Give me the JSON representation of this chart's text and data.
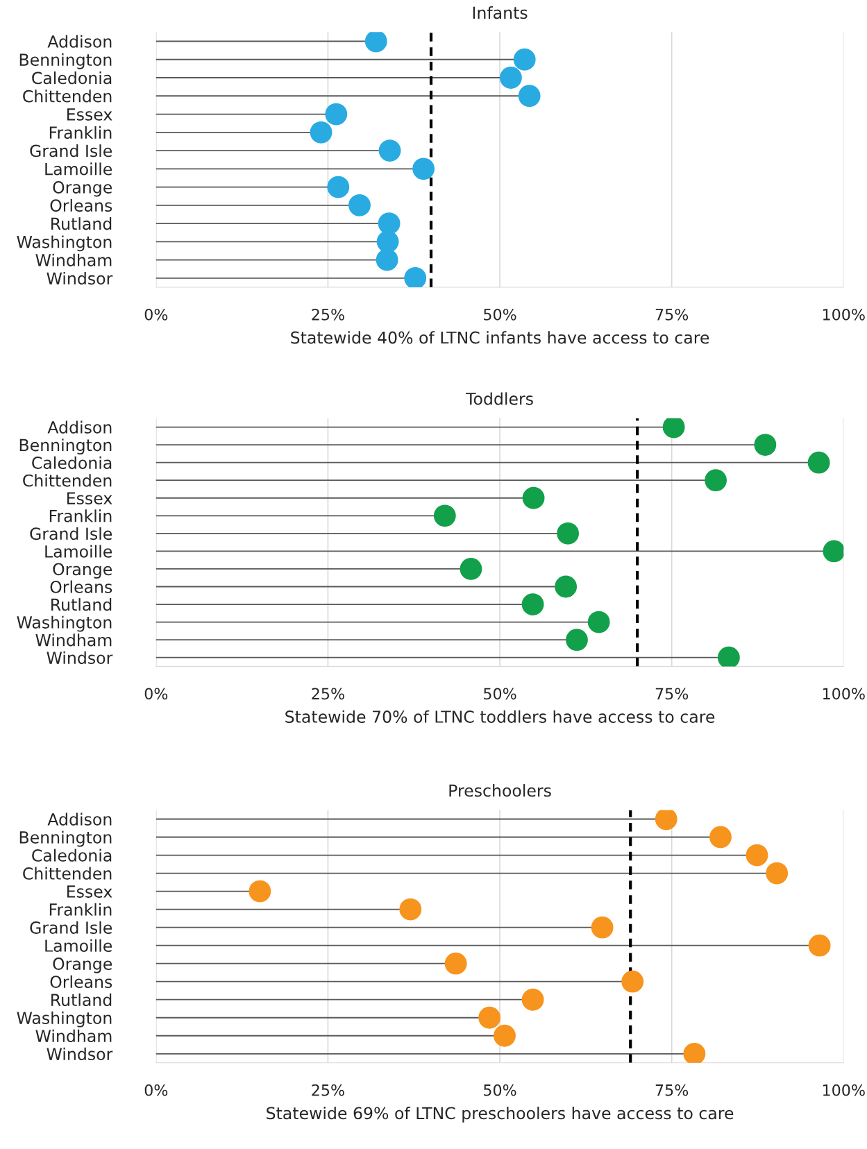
{
  "chart_data": [
    {
      "type": "lollipop",
      "title": "Infants",
      "xlabel": "Statewide 40% of LTNC infants have access to care",
      "orientation": "horizontal",
      "categories": [
        "Addison",
        "Bennington",
        "Caledonia",
        "Chittenden",
        "Essex",
        "Franklin",
        "Grand Isle",
        "Lamoille",
        "Orange",
        "Orleans",
        "Rutland",
        "Washington",
        "Windham",
        "Windsor"
      ],
      "series": [
        {
          "color": "#29abe2",
          "values": [
            32.0,
            53.6,
            51.6,
            54.3,
            26.2,
            24.0,
            34.0,
            38.9,
            26.5,
            29.6,
            33.9,
            33.7,
            33.6,
            37.7
          ]
        }
      ],
      "xlim": [
        0,
        100
      ],
      "xticks": [
        {
          "value": 0,
          "label": "0%"
        },
        {
          "value": 25,
          "label": "25%"
        },
        {
          "value": 50,
          "label": "50%"
        },
        {
          "value": 75,
          "label": "75%"
        },
        {
          "value": 100,
          "label": "100%"
        }
      ],
      "grid": "x",
      "legend": false,
      "marker": "circle",
      "ref_lines": [
        {
          "axis": "x",
          "value": 40,
          "color": "#000000",
          "line_style": "dashed"
        }
      ]
    },
    {
      "type": "lollipop",
      "title": "Toddlers",
      "xlabel": "Statewide 70% of LTNC toddlers have access to care",
      "orientation": "horizontal",
      "categories": [
        "Addison",
        "Bennington",
        "Caledonia",
        "Chittenden",
        "Essex",
        "Franklin",
        "Grand Isle",
        "Lamoille",
        "Orange",
        "Orleans",
        "Rutland",
        "Washington",
        "Windham",
        "Windsor"
      ],
      "series": [
        {
          "color": "#13a04a",
          "values": [
            75.3,
            88.6,
            96.4,
            81.4,
            54.9,
            42.0,
            59.9,
            98.6,
            45.8,
            59.6,
            54.8,
            64.4,
            61.2,
            83.3
          ]
        }
      ],
      "xlim": [
        0,
        100
      ],
      "xticks": [
        {
          "value": 0,
          "label": "0%"
        },
        {
          "value": 25,
          "label": "25%"
        },
        {
          "value": 50,
          "label": "50%"
        },
        {
          "value": 75,
          "label": "75%"
        },
        {
          "value": 100,
          "label": "100%"
        }
      ],
      "grid": "x",
      "legend": false,
      "marker": "circle",
      "ref_lines": [
        {
          "axis": "x",
          "value": 70,
          "color": "#000000",
          "line_style": "dashed"
        }
      ]
    },
    {
      "type": "lollipop",
      "title": "Preschoolers",
      "xlabel": "Statewide 69% of LTNC preschoolers have access to care",
      "orientation": "horizontal",
      "categories": [
        "Addison",
        "Bennington",
        "Caledonia",
        "Chittenden",
        "Essex",
        "Franklin",
        "Grand Isle",
        "Lamoille",
        "Orange",
        "Orleans",
        "Rutland",
        "Washington",
        "Windham",
        "Windsor"
      ],
      "series": [
        {
          "color": "#f7941d",
          "values": [
            74.2,
            82.1,
            87.4,
            90.3,
            15.1,
            37.0,
            64.9,
            96.5,
            43.6,
            69.3,
            54.8,
            48.5,
            50.7,
            78.3
          ]
        }
      ],
      "xlim": [
        0,
        100
      ],
      "xticks": [
        {
          "value": 0,
          "label": "0%"
        },
        {
          "value": 25,
          "label": "25%"
        },
        {
          "value": 50,
          "label": "50%"
        },
        {
          "value": 75,
          "label": "75%"
        },
        {
          "value": 100,
          "label": "100%"
        }
      ],
      "grid": "x",
      "legend": false,
      "marker": "circle",
      "ref_lines": [
        {
          "axis": "x",
          "value": 69,
          "color": "#000000",
          "line_style": "dashed"
        }
      ]
    }
  ]
}
